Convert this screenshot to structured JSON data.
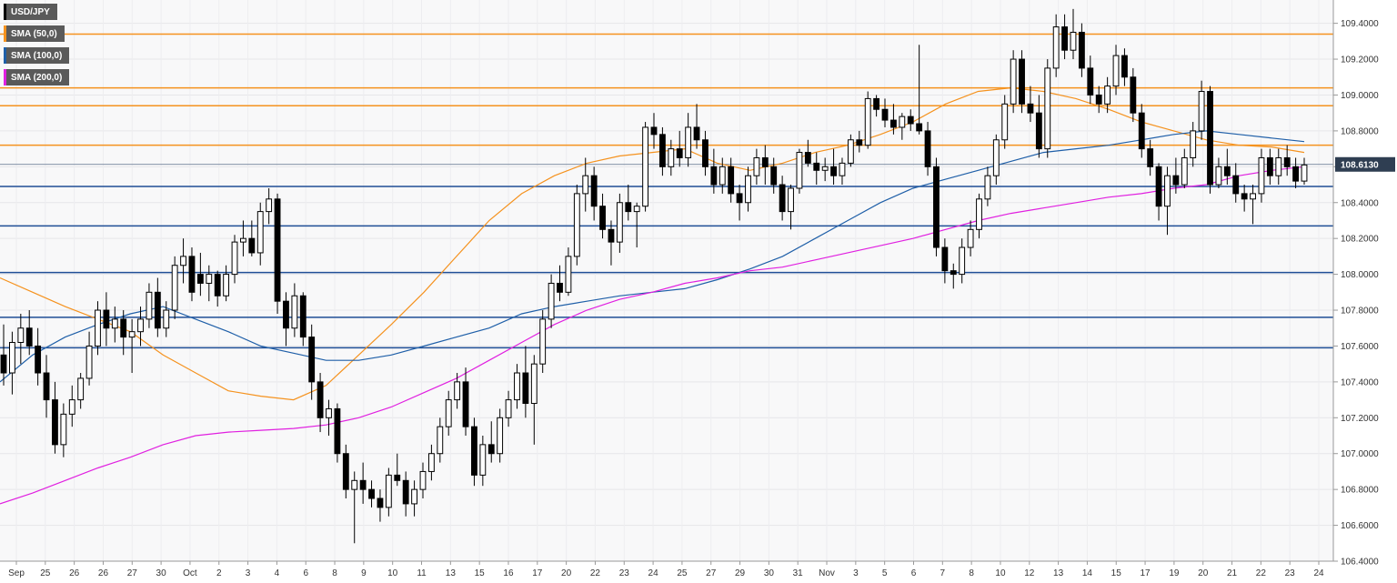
{
  "chart_data": {
    "type": "candlestick",
    "symbol": "USD/JPY",
    "last_price_label": "108.6130",
    "last_price": 108.613,
    "ylim": [
      106.4,
      109.53
    ],
    "y_ticks": [
      {
        "value": 106.4,
        "label": "106.4000"
      },
      {
        "value": 106.6,
        "label": "106.6000"
      },
      {
        "value": 106.8,
        "label": "106.8000"
      },
      {
        "value": 107.0,
        "label": "107.0000"
      },
      {
        "value": 107.2,
        "label": "107.2000"
      },
      {
        "value": 107.4,
        "label": "107.4000"
      },
      {
        "value": 107.6,
        "label": "107.6000"
      },
      {
        "value": 107.8,
        "label": "107.8000"
      },
      {
        "value": 108.0,
        "label": "108.0000"
      },
      {
        "value": 108.2,
        "label": "108.2000"
      },
      {
        "value": 108.4,
        "label": "108.4000"
      },
      {
        "value": 108.6,
        "label": "108.6000"
      },
      {
        "value": 108.8,
        "label": "108.8000"
      },
      {
        "value": 109.0,
        "label": "109.0000"
      },
      {
        "value": 109.2,
        "label": "109.2000"
      },
      {
        "value": 109.4,
        "label": "109.4000"
      }
    ],
    "x_ticks": [
      "Sep",
      "25",
      "26",
      "26",
      "27",
      "30",
      "Oct",
      "2",
      "3",
      "4",
      "6",
      "8",
      "9",
      "10",
      "11",
      "13",
      "15",
      "16",
      "17",
      "20",
      "22",
      "23",
      "24",
      "25",
      "27",
      "29",
      "30",
      "31",
      "Nov",
      "3",
      "5",
      "6",
      "7",
      "8",
      "10",
      "12",
      "13",
      "14",
      "15",
      "17",
      "19",
      "20",
      "21",
      "22",
      "23",
      "24"
    ],
    "legend": [
      {
        "label": "USD/JPY",
        "color": "#000000"
      },
      {
        "label": "SMA (50,0)",
        "color": "#f5921e"
      },
      {
        "label": "SMA (100,0)",
        "color": "#1f5fa8"
      },
      {
        "label": "SMA (200,0)",
        "color": "#e020e0"
      }
    ],
    "resistance_levels": [
      109.34,
      109.04,
      108.94,
      108.72
    ],
    "support_levels": [
      108.49,
      108.27,
      108.01,
      107.76,
      107.59
    ],
    "candles_ohlc": [
      [
        107.55,
        107.72,
        107.38,
        107.45
      ],
      [
        107.45,
        107.68,
        107.33,
        107.62
      ],
      [
        107.62,
        107.78,
        107.5,
        107.7
      ],
      [
        107.7,
        107.8,
        107.55,
        107.6
      ],
      [
        107.6,
        107.7,
        107.38,
        107.45
      ],
      [
        107.45,
        107.55,
        107.2,
        107.3
      ],
      [
        107.3,
        107.4,
        107.0,
        107.05
      ],
      [
        107.05,
        107.28,
        106.98,
        107.22
      ],
      [
        107.22,
        107.38,
        107.15,
        107.3
      ],
      [
        107.3,
        107.45,
        107.25,
        107.42
      ],
      [
        107.42,
        107.68,
        107.38,
        107.6
      ],
      [
        107.6,
        107.85,
        107.55,
        107.8
      ],
      [
        107.8,
        107.9,
        107.6,
        107.7
      ],
      [
        107.7,
        107.82,
        107.62,
        107.75
      ],
      [
        107.75,
        107.8,
        107.55,
        107.65
      ],
      [
        107.65,
        107.75,
        107.45,
        107.68
      ],
      [
        107.68,
        107.82,
        107.6,
        107.75
      ],
      [
        107.75,
        107.95,
        107.7,
        107.9
      ],
      [
        107.9,
        107.98,
        107.65,
        107.7
      ],
      [
        107.7,
        107.85,
        107.65,
        107.8
      ],
      [
        107.8,
        108.1,
        107.75,
        108.05
      ],
      [
        108.05,
        108.2,
        107.95,
        108.1
      ],
      [
        108.1,
        108.15,
        107.85,
        107.9
      ],
      [
        108.0,
        108.12,
        107.88,
        107.95
      ],
      [
        107.95,
        108.05,
        107.85,
        108.0
      ],
      [
        108.0,
        108.02,
        107.82,
        107.88
      ],
      [
        107.88,
        108.05,
        107.85,
        108.0
      ],
      [
        108.0,
        108.22,
        107.95,
        108.18
      ],
      [
        108.18,
        108.3,
        108.1,
        108.2
      ],
      [
        108.2,
        108.3,
        108.1,
        108.12
      ],
      [
        108.12,
        108.4,
        108.05,
        108.35
      ],
      [
        108.35,
        108.48,
        108.28,
        108.42
      ],
      [
        108.42,
        108.45,
        107.78,
        107.85
      ],
      [
        107.85,
        107.9,
        107.6,
        107.7
      ],
      [
        107.7,
        107.95,
        107.65,
        107.88
      ],
      [
        107.88,
        107.9,
        107.6,
        107.65
      ],
      [
        107.65,
        107.72,
        107.3,
        107.4
      ],
      [
        107.4,
        107.45,
        107.12,
        107.2
      ],
      [
        107.2,
        107.3,
        107.1,
        107.25
      ],
      [
        107.25,
        107.28,
        106.95,
        107.0
      ],
      [
        107.0,
        107.05,
        106.75,
        106.8
      ],
      [
        106.8,
        106.9,
        106.5,
        106.85
      ],
      [
        106.85,
        106.95,
        106.72,
        106.8
      ],
      [
        106.8,
        106.85,
        106.7,
        106.75
      ],
      [
        106.75,
        106.8,
        106.62,
        106.7
      ],
      [
        106.7,
        106.92,
        106.65,
        106.88
      ],
      [
        106.88,
        107.0,
        106.82,
        106.85
      ],
      [
        106.85,
        106.9,
        106.65,
        106.72
      ],
      [
        106.72,
        106.85,
        106.65,
        106.8
      ],
      [
        106.8,
        106.95,
        106.75,
        106.9
      ],
      [
        106.9,
        107.05,
        106.85,
        107.0
      ],
      [
        107.0,
        107.2,
        106.95,
        107.15
      ],
      [
        107.15,
        107.35,
        107.1,
        107.3
      ],
      [
        107.3,
        107.45,
        107.25,
        107.4
      ],
      [
        107.4,
        107.48,
        107.1,
        107.15
      ],
      [
        107.15,
        107.2,
        106.82,
        106.88
      ],
      [
        106.88,
        107.1,
        106.82,
        107.05
      ],
      [
        107.05,
        107.18,
        106.95,
        107.0
      ],
      [
        107.0,
        107.25,
        106.95,
        107.2
      ],
      [
        107.2,
        107.35,
        107.15,
        107.3
      ],
      [
        107.3,
        107.5,
        107.25,
        107.45
      ],
      [
        107.45,
        107.6,
        107.2,
        107.28
      ],
      [
        107.28,
        107.55,
        107.05,
        107.5
      ],
      [
        107.5,
        107.8,
        107.45,
        107.75
      ],
      [
        107.75,
        108.0,
        107.7,
        107.95
      ],
      [
        107.95,
        108.05,
        107.85,
        107.9
      ],
      [
        107.9,
        108.15,
        107.88,
        108.1
      ],
      [
        108.1,
        108.5,
        108.05,
        108.45
      ],
      [
        108.45,
        108.65,
        108.35,
        108.55
      ],
      [
        108.55,
        108.6,
        108.3,
        108.38
      ],
      [
        108.38,
        108.45,
        108.2,
        108.25
      ],
      [
        108.25,
        108.3,
        108.05,
        108.18
      ],
      [
        108.18,
        108.45,
        108.12,
        108.4
      ],
      [
        108.4,
        108.5,
        108.3,
        108.35
      ],
      [
        108.35,
        108.4,
        108.15,
        108.38
      ],
      [
        108.38,
        108.85,
        108.35,
        108.82
      ],
      [
        108.82,
        108.9,
        108.7,
        108.78
      ],
      [
        108.78,
        108.82,
        108.55,
        108.6
      ],
      [
        108.6,
        108.75,
        108.55,
        108.7
      ],
      [
        108.7,
        108.8,
        108.6,
        108.65
      ],
      [
        108.65,
        108.9,
        108.6,
        108.82
      ],
      [
        108.82,
        108.95,
        108.7,
        108.75
      ],
      [
        108.75,
        108.8,
        108.55,
        108.6
      ],
      [
        108.6,
        108.7,
        108.45,
        108.5
      ],
      [
        108.5,
        108.65,
        108.45,
        108.6
      ],
      [
        108.6,
        108.65,
        108.4,
        108.45
      ],
      [
        108.45,
        108.5,
        108.3,
        108.4
      ],
      [
        108.4,
        108.6,
        108.35,
        108.55
      ],
      [
        108.55,
        108.7,
        108.5,
        108.65
      ],
      [
        108.65,
        108.72,
        108.5,
        108.6
      ],
      [
        108.6,
        108.65,
        108.45,
        108.5
      ],
      [
        108.5,
        108.55,
        108.3,
        108.35
      ],
      [
        108.35,
        108.5,
        108.25,
        108.48
      ],
      [
        108.48,
        108.7,
        108.45,
        108.68
      ],
      [
        108.68,
        108.75,
        108.6,
        108.62
      ],
      [
        108.62,
        108.68,
        108.5,
        108.58
      ],
      [
        108.58,
        108.65,
        108.52,
        108.6
      ],
      [
        108.6,
        108.7,
        108.5,
        108.55
      ],
      [
        108.55,
        108.65,
        108.5,
        108.62
      ],
      [
        108.62,
        108.78,
        108.6,
        108.75
      ],
      [
        108.75,
        108.8,
        108.68,
        108.72
      ],
      [
        108.72,
        109.02,
        108.7,
        108.98
      ],
      [
        108.98,
        109.0,
        108.88,
        108.92
      ],
      [
        108.92,
        108.98,
        108.82,
        108.86
      ],
      [
        108.86,
        108.95,
        108.78,
        108.82
      ],
      [
        108.82,
        108.9,
        108.75,
        108.88
      ],
      [
        108.88,
        108.92,
        108.8,
        108.84
      ],
      [
        108.84,
        109.28,
        108.78,
        108.8
      ],
      [
        108.8,
        108.85,
        108.55,
        108.6
      ],
      [
        108.6,
        108.65,
        108.1,
        108.15
      ],
      [
        108.15,
        108.2,
        107.95,
        108.02
      ],
      [
        108.02,
        108.06,
        107.92,
        108.0
      ],
      [
        108.0,
        108.2,
        107.95,
        108.15
      ],
      [
        108.15,
        108.3,
        108.1,
        108.25
      ],
      [
        108.25,
        108.45,
        108.2,
        108.42
      ],
      [
        108.42,
        108.6,
        108.38,
        108.55
      ],
      [
        108.55,
        108.78,
        108.5,
        108.75
      ],
      [
        108.75,
        109.0,
        108.7,
        108.95
      ],
      [
        108.95,
        109.25,
        108.9,
        109.2
      ],
      [
        109.2,
        109.25,
        108.9,
        108.95
      ],
      [
        108.95,
        109.05,
        108.85,
        108.9
      ],
      [
        108.9,
        109.0,
        108.65,
        108.7
      ],
      [
        108.7,
        109.2,
        108.65,
        109.15
      ],
      [
        109.15,
        109.45,
        109.1,
        109.38
      ],
      [
        109.38,
        109.45,
        109.2,
        109.25
      ],
      [
        109.25,
        109.48,
        109.2,
        109.35
      ],
      [
        109.35,
        109.4,
        109.1,
        109.15
      ],
      [
        109.15,
        109.22,
        108.95,
        109.0
      ],
      [
        109.0,
        109.05,
        108.9,
        108.95
      ],
      [
        108.95,
        109.1,
        108.9,
        109.05
      ],
      [
        109.05,
        109.28,
        109.0,
        109.22
      ],
      [
        109.22,
        109.26,
        109.05,
        109.1
      ],
      [
        109.1,
        109.15,
        108.85,
        108.9
      ],
      [
        108.9,
        108.95,
        108.65,
        108.7
      ],
      [
        108.7,
        108.75,
        108.55,
        108.6
      ],
      [
        108.6,
        108.62,
        108.3,
        108.38
      ],
      [
        108.38,
        108.6,
        108.22,
        108.55
      ],
      [
        108.55,
        108.65,
        108.45,
        108.5
      ],
      [
        108.5,
        108.7,
        108.48,
        108.65
      ],
      [
        108.65,
        108.85,
        108.6,
        108.8
      ],
      [
        108.8,
        109.08,
        108.75,
        109.02
      ],
      [
        109.02,
        109.05,
        108.45,
        108.5
      ],
      [
        108.5,
        108.65,
        108.48,
        108.6
      ],
      [
        108.6,
        108.7,
        108.5,
        108.55
      ],
      [
        108.55,
        108.62,
        108.4,
        108.45
      ],
      [
        108.45,
        108.5,
        108.35,
        108.42
      ],
      [
        108.42,
        108.5,
        108.28,
        108.45
      ],
      [
        108.45,
        108.7,
        108.4,
        108.65
      ],
      [
        108.65,
        108.7,
        108.5,
        108.55
      ],
      [
        108.55,
        108.7,
        108.5,
        108.65
      ],
      [
        108.65,
        108.72,
        108.55,
        108.6
      ],
      [
        108.6,
        108.65,
        108.48,
        108.52
      ],
      [
        108.52,
        108.65,
        108.5,
        108.61
      ]
    ],
    "sma_50": [
      107.98,
      107.9,
      107.82,
      107.75,
      107.68,
      107.55,
      107.45,
      107.35,
      107.32,
      107.3,
      107.38,
      107.55,
      107.72,
      107.9,
      108.1,
      108.3,
      108.45,
      108.55,
      108.62,
      108.66,
      108.68,
      108.7,
      108.62,
      108.58,
      108.62,
      108.68,
      108.72,
      108.78,
      108.85,
      108.95,
      109.02,
      109.04,
      109.02,
      108.98,
      108.92,
      108.85,
      108.8,
      108.75,
      108.72,
      108.71,
      108.68
    ],
    "sma_100": [
      107.4,
      107.55,
      107.65,
      107.72,
      107.78,
      107.82,
      107.75,
      107.68,
      107.6,
      107.56,
      107.52,
      107.52,
      107.55,
      107.6,
      107.65,
      107.7,
      107.78,
      107.82,
      107.85,
      107.88,
      107.9,
      107.92,
      107.97,
      108.03,
      108.1,
      108.2,
      108.3,
      108.4,
      108.48,
      108.53,
      108.58,
      108.63,
      108.68,
      108.7,
      108.72,
      108.75,
      108.78,
      108.8,
      108.78,
      108.76,
      108.74
    ],
    "sma_200": [
      106.72,
      106.78,
      106.85,
      106.92,
      106.98,
      107.05,
      107.1,
      107.12,
      107.13,
      107.14,
      107.16,
      107.2,
      107.26,
      107.34,
      107.42,
      107.52,
      107.62,
      107.72,
      107.8,
      107.86,
      107.9,
      107.95,
      107.98,
      108.02,
      108.04,
      108.08,
      108.12,
      108.16,
      108.2,
      108.25,
      108.3,
      108.34,
      108.37,
      108.4,
      108.43,
      108.45,
      108.48,
      108.5,
      108.55,
      108.58,
      108.6
    ]
  }
}
